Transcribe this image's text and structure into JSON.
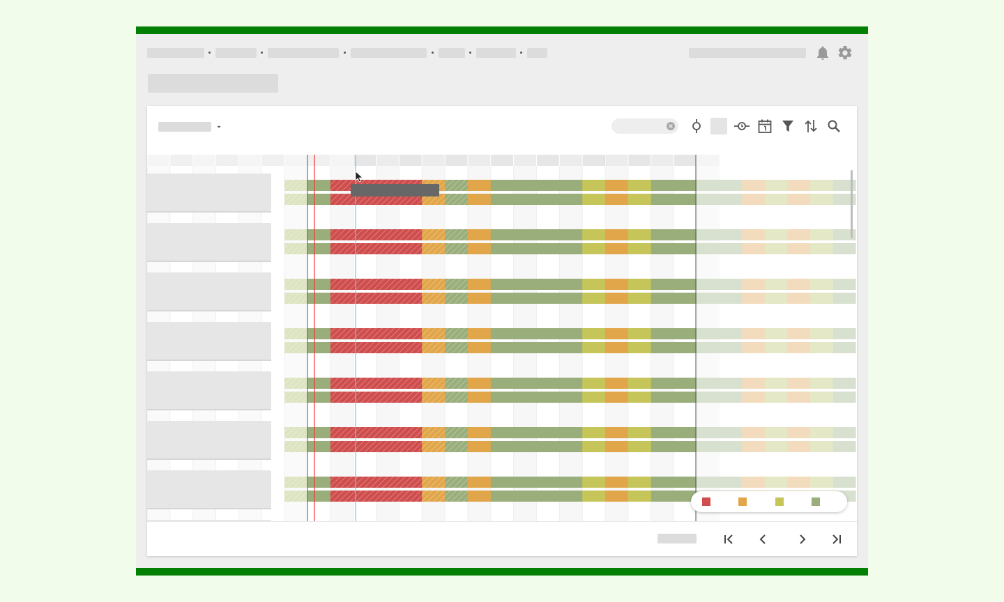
{
  "colors": {
    "accent_green": "#038003",
    "status_late": "#cf4d4d",
    "status_risk": "#e2a64a",
    "status_warn": "#c5c55a",
    "status_ok": "#9aae7c",
    "today_line": "#ee3333",
    "now_line": "#6ec9ee"
  },
  "header": {
    "breadcrumb_count": 7,
    "icons": [
      "bell-icon",
      "gear-icon"
    ]
  },
  "toolbar": {
    "icons": [
      "clear-icon",
      "timeline-marker-icon",
      "milestone-icon",
      "calendar-icon",
      "filter-icon",
      "sort-icon",
      "search-icon"
    ]
  },
  "gantt": {
    "row_count": 7,
    "columns": 25,
    "legend": [
      {
        "status": "late",
        "label": ""
      },
      {
        "status": "risk",
        "label": ""
      },
      {
        "status": "warn",
        "label": ""
      },
      {
        "status": "ok",
        "label": ""
      }
    ]
  },
  "footer": {
    "icons": [
      "first-page-icon",
      "prev-page-icon",
      "next-page-icon",
      "last-page-icon"
    ]
  }
}
